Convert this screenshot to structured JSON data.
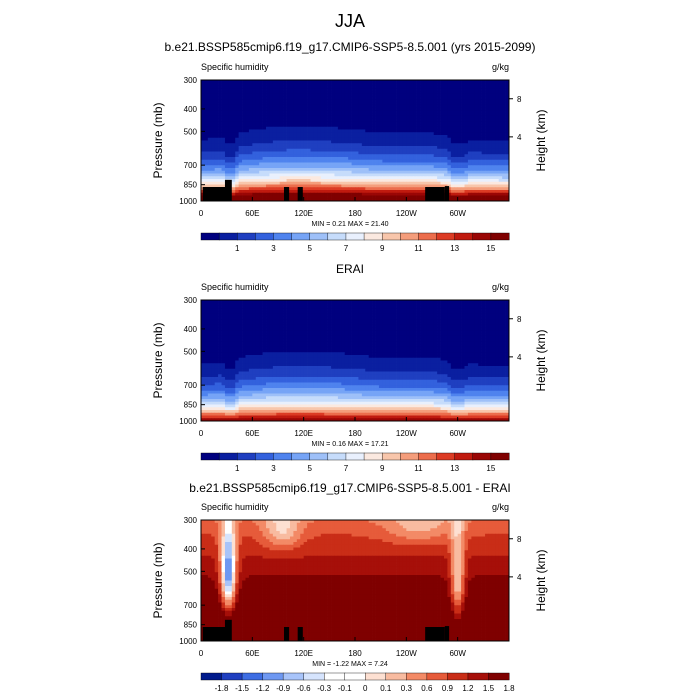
{
  "figure": {
    "main_title": "JJA",
    "colors": {
      "abs_scale": [
        "#00007f",
        "#0a1fa0",
        "#1f3fc0",
        "#3361dd",
        "#4f83ee",
        "#76a4f6",
        "#9ec0f8",
        "#c6dcfb",
        "#e9f0fd",
        "#fbe9e0",
        "#f8c6ab",
        "#f49d7b",
        "#ec6d4c",
        "#dc3b24",
        "#c01a0f",
        "#9a0605",
        "#7f0000"
      ],
      "diff_scale": [
        "#001a8c",
        "#1f3fc0",
        "#3d6de3",
        "#6e98f2",
        "#a8c4fa",
        "#d6e4fd",
        "#ffffff",
        "#ffffff",
        "#fde0d2",
        "#f8bba0",
        "#f38a66",
        "#e65b3a",
        "#c92d17",
        "#a60f09",
        "#7f0000"
      ]
    }
  },
  "chart_data": [
    {
      "type": "heatmap",
      "panel": "model",
      "title": "b.e21.BSSP585cmip6.f19_g17.CMIP6-SSP5-8.5.001 (yrs 2015-2099)",
      "left_label": "Specific humidity",
      "right_label": "g/kg",
      "ylabel": "Pressure (mb)",
      "ylabel_right": "Height (km)",
      "y_ticks": [
        "300",
        "400",
        "500",
        "700",
        "850",
        "1000"
      ],
      "y_tick_values": [
        300,
        400,
        500,
        700,
        850,
        1000
      ],
      "y_right_ticks": [
        "8",
        "4"
      ],
      "x_ticks": [
        "0",
        "60E",
        "120E",
        "180",
        "120W",
        "60W"
      ],
      "x_tick_values": [
        0,
        60,
        120,
        180,
        240,
        300
      ],
      "xlim": [
        0,
        360
      ],
      "ylim": [
        1000,
        300
      ],
      "min_max": "MIN =   0.21  MAX =  21.40",
      "colorbar_ticks": [
        "1",
        "3",
        "5",
        "7",
        "9",
        "11",
        "13",
        "15"
      ],
      "colorbar_levels": [
        0,
        1,
        2,
        3,
        4,
        5,
        6,
        7,
        8,
        9,
        10,
        11,
        12,
        13,
        14,
        15,
        16
      ],
      "scale": "abs",
      "surface_max": 20.5,
      "trop_factor": 1.0
    },
    {
      "type": "heatmap",
      "panel": "obs",
      "title": "ERAI",
      "left_label": "Specific humidity",
      "right_label": "g/kg",
      "ylabel": "Pressure (mb)",
      "ylabel_right": "Height (km)",
      "y_ticks": [
        "300",
        "400",
        "500",
        "700",
        "850",
        "1000"
      ],
      "y_tick_values": [
        300,
        400,
        500,
        700,
        850,
        1000
      ],
      "y_right_ticks": [
        "8",
        "4"
      ],
      "x_ticks": [
        "0",
        "60E",
        "120E",
        "180",
        "120W",
        "60W"
      ],
      "x_tick_values": [
        0,
        60,
        120,
        180,
        240,
        300
      ],
      "xlim": [
        0,
        360
      ],
      "ylim": [
        1000,
        300
      ],
      "min_max": "MIN =   0.16  MAX =  17.21",
      "colorbar_ticks": [
        "1",
        "3",
        "5",
        "7",
        "9",
        "11",
        "13",
        "15"
      ],
      "colorbar_levels": [
        0,
        1,
        2,
        3,
        4,
        5,
        6,
        7,
        8,
        9,
        10,
        11,
        12,
        13,
        14,
        15,
        16
      ],
      "scale": "abs",
      "surface_max": 16.5,
      "trop_factor": 0.85
    },
    {
      "type": "heatmap",
      "panel": "diff",
      "title": "b.e21.BSSP585cmip6.f19_g17.CMIP6-SSP5-8.5.001 - ERAI",
      "left_label": "Specific humidity",
      "right_label": "g/kg",
      "ylabel": "Pressure (mb)",
      "ylabel_right": "Height (km)",
      "y_ticks": [
        "300",
        "400",
        "500",
        "700",
        "850",
        "1000"
      ],
      "y_tick_values": [
        300,
        400,
        500,
        700,
        850,
        1000
      ],
      "y_right_ticks": [
        "8",
        "4"
      ],
      "x_ticks": [
        "0",
        "60E",
        "120E",
        "180",
        "120W",
        "60W"
      ],
      "x_tick_values": [
        0,
        60,
        120,
        180,
        240,
        300
      ],
      "xlim": [
        0,
        360
      ],
      "ylim": [
        1000,
        300
      ],
      "min_max": "MIN =  -1.22  MAX =   7.24",
      "colorbar_ticks": [
        "-1.8",
        "-1.5",
        "-1.2",
        "-0.9",
        "-0.6",
        "-0.3",
        "-0.1",
        "0",
        "0.1",
        "0.3",
        "0.6",
        "0.9",
        "1.2",
        "1.5",
        "1.8"
      ],
      "colorbar_levels": [
        -1.8,
        -1.5,
        -1.2,
        -0.9,
        -0.6,
        -0.3,
        -0.1,
        0,
        0.1,
        0.3,
        0.6,
        0.9,
        1.2,
        1.5,
        1.8
      ],
      "scale": "diff"
    }
  ]
}
